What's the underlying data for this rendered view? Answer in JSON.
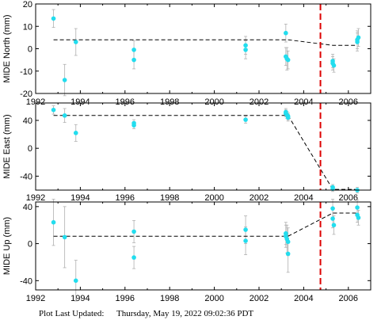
{
  "footer": {
    "label": "Plot Last Updated:",
    "datetime": "Thursday, May 19, 2022 09:02:36 PDT"
  },
  "colors": {
    "point": "#22ddee",
    "errorbar": "#b0b0b0",
    "model": "#000000",
    "event_line": "#dd0000"
  },
  "chart_data": [
    {
      "type": "scatter",
      "ylabel": "MIDE North (mm)",
      "xlim": [
        1992,
        2007
      ],
      "ylim": [
        -20,
        20
      ],
      "xticks": [
        1992,
        1994,
        1996,
        1998,
        2000,
        2002,
        2004,
        2006
      ],
      "yticks": [
        -20,
        -10,
        0,
        10,
        20
      ],
      "event_x": 2004.75,
      "model_line": [
        [
          1992.8,
          4
        ],
        [
          2003.3,
          4
        ],
        [
          2005.3,
          1.5
        ],
        [
          2006.4,
          1.5
        ]
      ],
      "points": [
        {
          "x": 1992.8,
          "y": 13.5,
          "err": 4
        },
        {
          "x": 1993.3,
          "y": -14,
          "err": 7
        },
        {
          "x": 1993.8,
          "y": 3,
          "err": 6
        },
        {
          "x": 1996.4,
          "y": -0.5,
          "err": 4
        },
        {
          "x": 1996.4,
          "y": -5,
          "err": 4
        },
        {
          "x": 2001.4,
          "y": 1.5,
          "err": 4
        },
        {
          "x": 2001.4,
          "y": -0.5,
          "err": 4
        },
        {
          "x": 2003.2,
          "y": 7,
          "err": 4
        },
        {
          "x": 2003.2,
          "y": -3.5,
          "err": 4
        },
        {
          "x": 2003.25,
          "y": -4.5,
          "err": 5
        },
        {
          "x": 2003.3,
          "y": -5,
          "err": 4
        },
        {
          "x": 2005.3,
          "y": -5.5,
          "err": 3
        },
        {
          "x": 2005.3,
          "y": -6.5,
          "err": 3
        },
        {
          "x": 2005.35,
          "y": -7.5,
          "err": 3
        },
        {
          "x": 2006.4,
          "y": 3,
          "err": 4
        },
        {
          "x": 2006.4,
          "y": 4,
          "err": 4
        },
        {
          "x": 2006.45,
          "y": 5,
          "err": 4
        }
      ]
    },
    {
      "type": "scatter",
      "ylabel": "MIDE East (mm)",
      "xlim": [
        1992,
        2007
      ],
      "ylim": [
        -60,
        65
      ],
      "xticks": [
        1992,
        1994,
        1996,
        1998,
        2000,
        2002,
        2004,
        2006
      ],
      "yticks": [
        -40,
        0,
        40
      ],
      "event_x": 2004.75,
      "model_line": [
        [
          1992.8,
          47
        ],
        [
          2003.3,
          47
        ],
        [
          2005.3,
          -59
        ],
        [
          2006.4,
          -59
        ]
      ],
      "points": [
        {
          "x": 1992.8,
          "y": 55,
          "err": 6
        },
        {
          "x": 1993.3,
          "y": 47,
          "err": 10
        },
        {
          "x": 1993.8,
          "y": 22,
          "err": 12
        },
        {
          "x": 1996.4,
          "y": 33,
          "err": 5
        },
        {
          "x": 1996.4,
          "y": 36,
          "err": 5
        },
        {
          "x": 2001.4,
          "y": 41,
          "err": 5
        },
        {
          "x": 2003.2,
          "y": 52,
          "err": 5
        },
        {
          "x": 2003.2,
          "y": 50,
          "err": 5
        },
        {
          "x": 2003.25,
          "y": 48,
          "err": 5
        },
        {
          "x": 2003.3,
          "y": 46,
          "err": 5
        },
        {
          "x": 2003.3,
          "y": 44,
          "err": 5
        },
        {
          "x": 2005.3,
          "y": -56,
          "err": 4
        },
        {
          "x": 2005.3,
          "y": -58,
          "err": 4
        },
        {
          "x": 2006.4,
          "y": -60,
          "err": 4
        }
      ]
    },
    {
      "type": "scatter",
      "ylabel": "MIDE Up (mm)",
      "xlim": [
        1992,
        2007
      ],
      "ylim": [
        -50,
        45
      ],
      "xticks": [
        1992,
        1994,
        1996,
        1998,
        2000,
        2002,
        2004,
        2006
      ],
      "yticks": [
        -40,
        0,
        40
      ],
      "event_x": 2004.75,
      "model_line": [
        [
          1992.8,
          8
        ],
        [
          2003.3,
          8
        ],
        [
          2005.3,
          33
        ],
        [
          2006.4,
          33
        ]
      ],
      "points": [
        {
          "x": 1992.8,
          "y": 23,
          "err": 25
        },
        {
          "x": 1993.3,
          "y": 7,
          "err": 33
        },
        {
          "x": 1993.8,
          "y": -40,
          "err": 22
        },
        {
          "x": 1996.4,
          "y": 13,
          "err": 12
        },
        {
          "x": 1996.4,
          "y": -15,
          "err": 12
        },
        {
          "x": 2001.4,
          "y": 15,
          "err": 15
        },
        {
          "x": 2001.4,
          "y": 3,
          "err": 15
        },
        {
          "x": 2003.2,
          "y": 11,
          "err": 12
        },
        {
          "x": 2003.2,
          "y": 8,
          "err": 12
        },
        {
          "x": 2003.25,
          "y": 5,
          "err": 15
        },
        {
          "x": 2003.3,
          "y": 2,
          "err": 15
        },
        {
          "x": 2003.3,
          "y": -11,
          "err": 20
        },
        {
          "x": 2005.3,
          "y": 38,
          "err": 10
        },
        {
          "x": 2005.3,
          "y": 27,
          "err": 10
        },
        {
          "x": 2005.35,
          "y": 20,
          "err": 10
        },
        {
          "x": 2006.4,
          "y": 39,
          "err": 8
        },
        {
          "x": 2006.4,
          "y": 31,
          "err": 8
        },
        {
          "x": 2006.45,
          "y": 28,
          "err": 8
        }
      ]
    }
  ]
}
